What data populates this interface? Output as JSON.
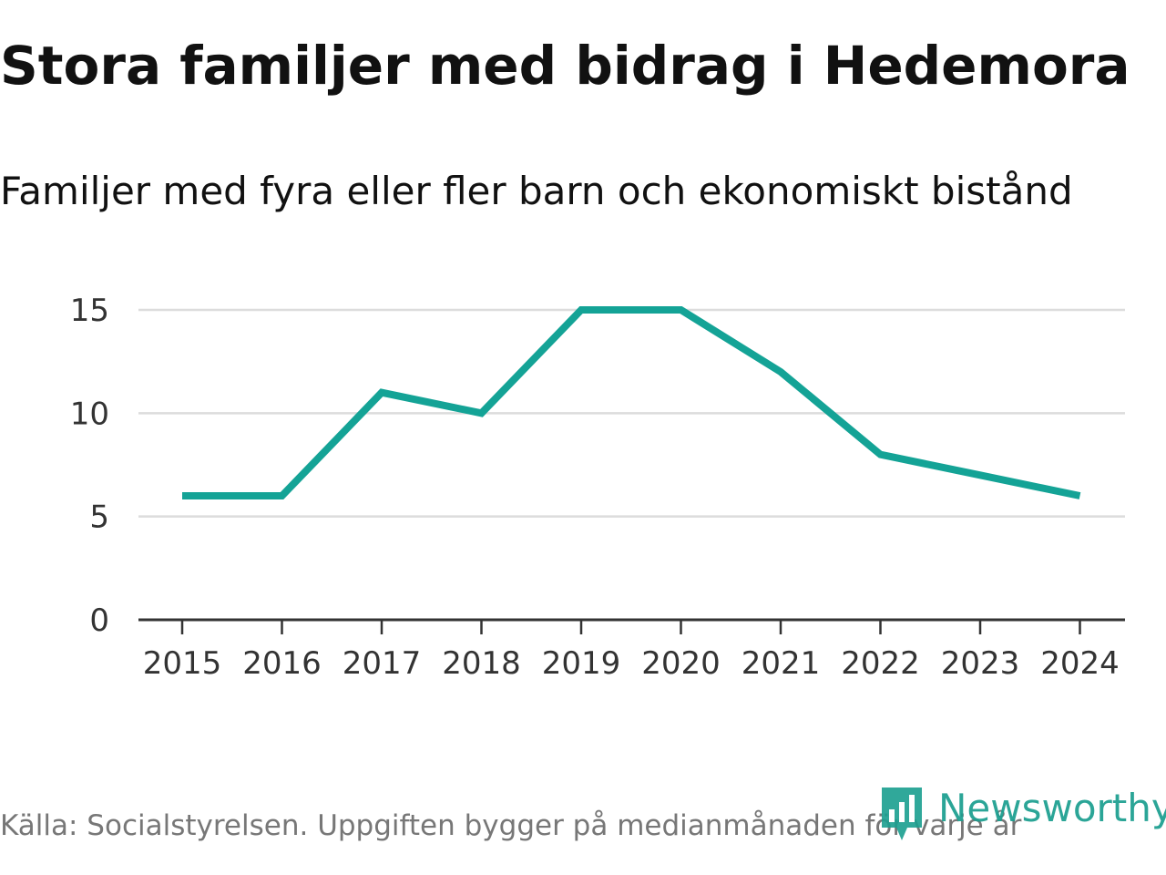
{
  "chart_data": {
    "type": "line",
    "title": "Stora familjer med bidrag i Hedemora",
    "subtitle": "Familjer med fyra eller fler barn och ekonomiskt bistånd",
    "xlabel": "",
    "ylabel": "",
    "categories": [
      "2015",
      "2016",
      "2017",
      "2018",
      "2019",
      "2020",
      "2021",
      "2022",
      "2023",
      "2024"
    ],
    "series": [
      {
        "name": "Familjer",
        "values": [
          6,
          6,
          11,
          10,
          15,
          15,
          12,
          8,
          7,
          6
        ],
        "color": "#14a396"
      }
    ],
    "ylim": [
      0,
      15
    ],
    "yticks": [
      "0",
      "5",
      "10",
      "15"
    ],
    "grid": true
  },
  "footer": {
    "source": "Källa: Socialstyrelsen. Uppgiften bygger på medianmånaden för varje år",
    "brand": "Newsworthy",
    "brand_color": "#1a9e8f"
  }
}
